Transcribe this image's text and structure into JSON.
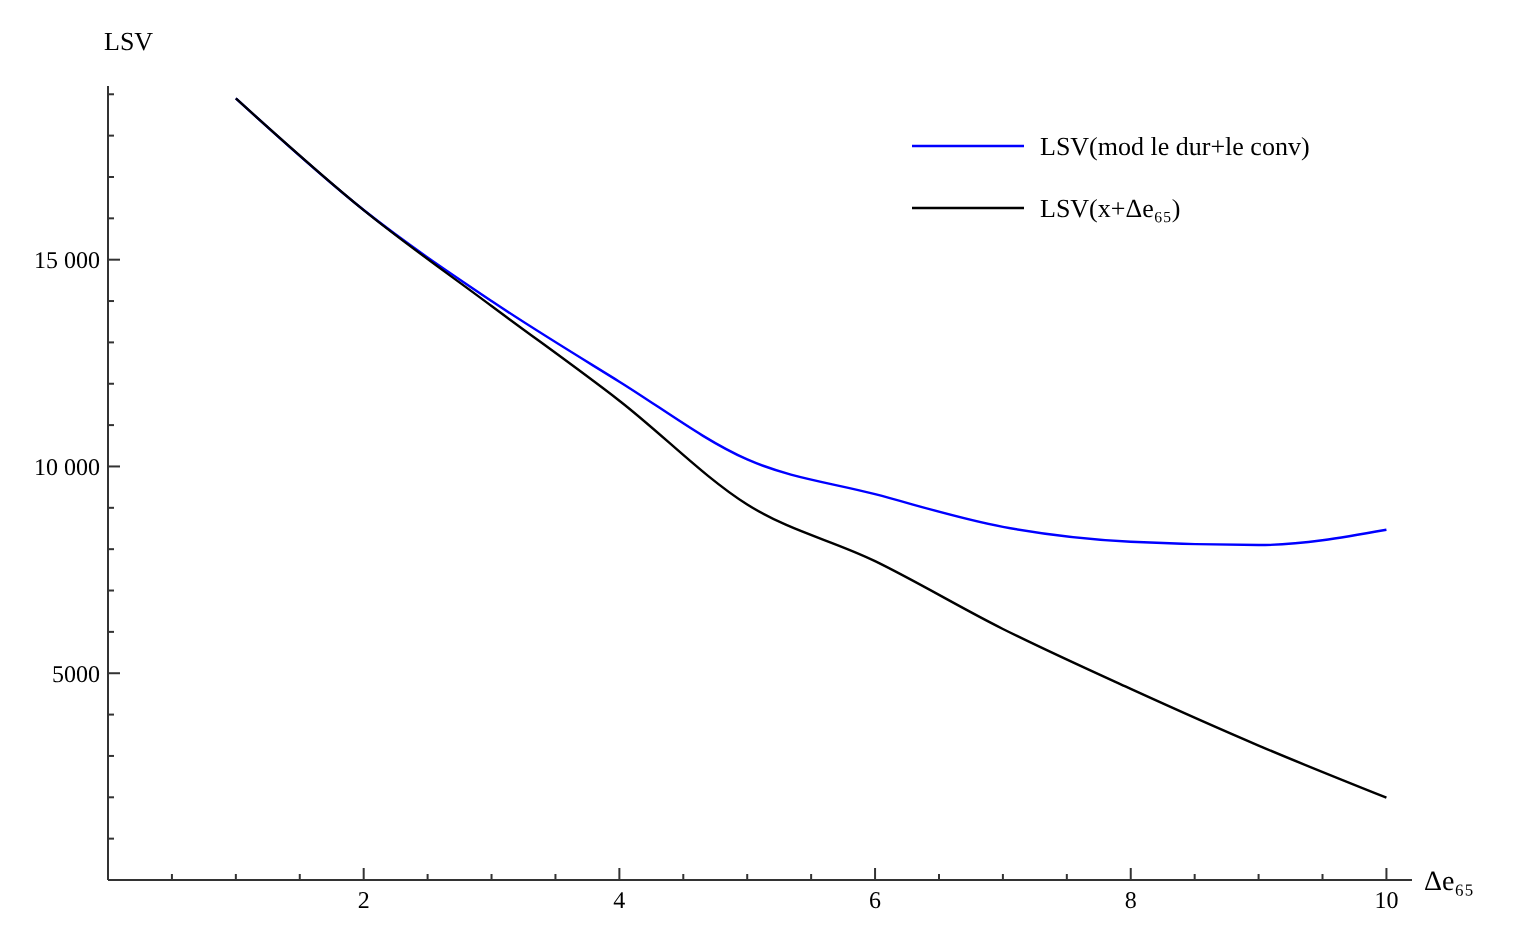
{
  "chart_data": {
    "type": "line",
    "xlabel": "Δe₆₅",
    "ylabel": "LSV",
    "x": [
      1,
      2,
      3,
      4,
      5,
      6,
      7,
      8,
      9,
      10
    ],
    "series": [
      {
        "name": "LSV(mod le dur+le conv)",
        "color": "#0000ff",
        "values": [
          18900,
          16200,
          14000,
          12050,
          10170,
          9330,
          8540,
          8180,
          8100,
          8470
        ]
      },
      {
        "name": "LSV(x+Δe₆₅)",
        "color": "#000000",
        "values": [
          18900,
          16200,
          13880,
          11590,
          9080,
          7710,
          6070,
          4620,
          3250,
          1990
        ]
      }
    ],
    "xlim": [
      0,
      10.2
    ],
    "ylim": [
      0,
      19200
    ],
    "xticks": [
      {
        "value": 0.5,
        "label": null
      },
      {
        "value": 1,
        "label": null
      },
      {
        "value": 1.5,
        "label": null
      },
      2,
      {
        "value": 2.5,
        "label": null
      },
      {
        "value": 3,
        "label": null
      },
      {
        "value": 3.5,
        "label": null
      },
      4,
      {
        "value": 4.5,
        "label": null
      },
      {
        "value": 5,
        "label": null
      },
      {
        "value": 5.5,
        "label": null
      },
      6,
      {
        "value": 6.5,
        "label": null
      },
      {
        "value": 7,
        "label": null
      },
      {
        "value": 7.5,
        "label": null
      },
      8,
      {
        "value": 8.5,
        "label": null
      },
      {
        "value": 9,
        "label": null
      },
      {
        "value": 9.5,
        "label": null
      },
      10
    ],
    "yticks": [
      {
        "value": 1000,
        "label": null
      },
      {
        "value": 2000,
        "label": null
      },
      {
        "value": 3000,
        "label": null
      },
      {
        "value": 4000,
        "label": null
      },
      5000,
      {
        "value": 6000,
        "label": null
      },
      {
        "value": 7000,
        "label": null
      },
      {
        "value": 8000,
        "label": null
      },
      {
        "value": 9000,
        "label": null
      },
      {
        "value": 10000,
        "label": "10 000"
      },
      {
        "value": 11000,
        "label": null
      },
      {
        "value": 12000,
        "label": null
      },
      {
        "value": 13000,
        "label": null
      },
      {
        "value": 14000,
        "label": null
      },
      {
        "value": 15000,
        "label": "15 000"
      },
      {
        "value": 16000,
        "label": null
      },
      {
        "value": 17000,
        "label": null
      },
      {
        "value": 18000,
        "label": null
      },
      {
        "value": 19000,
        "label": null
      }
    ],
    "grid": false,
    "legend": "top right",
    "marker": "none",
    "line_style": "solid"
  }
}
